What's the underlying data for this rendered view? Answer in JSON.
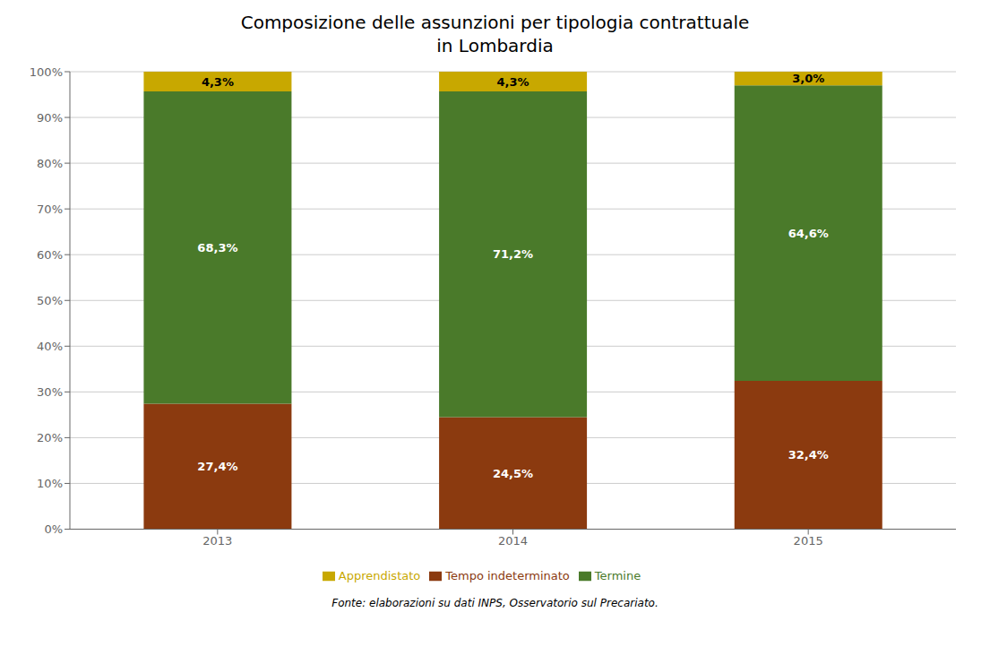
{
  "chart_data": {
    "type": "bar",
    "title": "Composizione delle assunzioni per tipologia contrattuale\nin Lombardia",
    "categories": [
      "2013",
      "2014",
      "2015"
    ],
    "series": [
      {
        "name": "Tempo indeterminato",
        "color": "#8B3A0F",
        "values": [
          27.4,
          24.5,
          32.4
        ],
        "value_labels": [
          "27,4%",
          "24,5%",
          "32,4%"
        ]
      },
      {
        "name": "Termine",
        "color": "#4A7A2A",
        "values": [
          68.3,
          71.2,
          64.6
        ],
        "value_labels": [
          "68,3%",
          "71,2%",
          "64,6%"
        ]
      },
      {
        "name": "Apprendistato",
        "color": "#C8A800",
        "values": [
          4.3,
          4.3,
          3.0
        ],
        "value_labels": [
          "4,3%",
          "4,3%",
          "3,0%"
        ]
      }
    ],
    "stacked": true,
    "data_labels": true,
    "ylim": [
      0,
      100
    ],
    "yticks": [
      {
        "value": 0,
        "label": "0%"
      },
      {
        "value": 10,
        "label": "10%"
      },
      {
        "value": 20,
        "label": "20%"
      },
      {
        "value": 30,
        "label": "30%"
      },
      {
        "value": 40,
        "label": "40%"
      },
      {
        "value": 50,
        "label": "50%"
      },
      {
        "value": 60,
        "label": "60%"
      },
      {
        "value": 70,
        "label": "70%"
      },
      {
        "value": 80,
        "label": "80%"
      },
      {
        "value": 90,
        "label": "90%"
      },
      {
        "value": 100,
        "label": "100%"
      }
    ],
    "grid": true,
    "legend": "bottom",
    "annotations": [
      "Fonte: elaborazioni su dati INPS, Osservatorio sul Precariato."
    ]
  }
}
